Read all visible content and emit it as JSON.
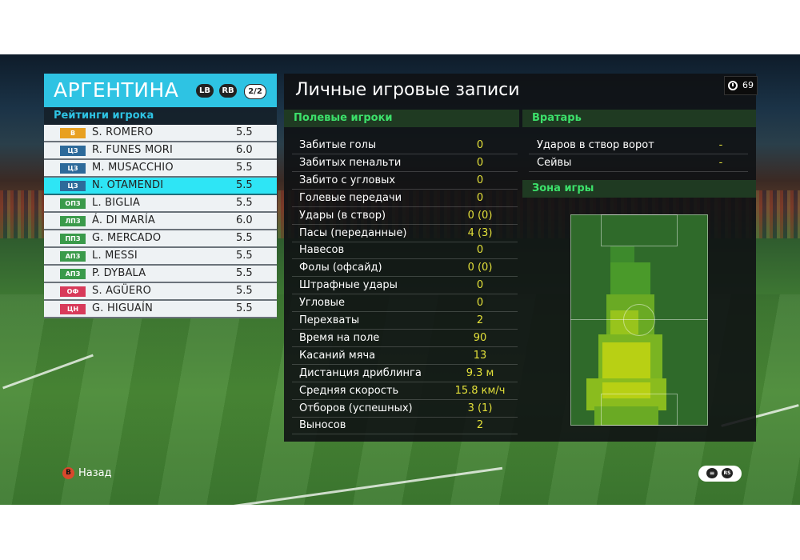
{
  "team": {
    "name": "АРГЕНТИНА",
    "lb": "LB",
    "rb": "RB",
    "page": "2/2"
  },
  "ratings_header": "Рейтинги игрока",
  "players": [
    {
      "pos": "В",
      "pos_color": "#e8a020",
      "name": "S. ROMERO",
      "rating": "5.5",
      "selected": false
    },
    {
      "pos": "ЦЗ",
      "pos_color": "#2d6a9a",
      "name": "R. FUNES MORI",
      "rating": "6.0",
      "selected": false
    },
    {
      "pos": "ЦЗ",
      "pos_color": "#2d6a9a",
      "name": "M. MUSACCHIO",
      "rating": "5.5",
      "selected": false
    },
    {
      "pos": "ЦЗ",
      "pos_color": "#2d6a9a",
      "name": "N. OTAMENDI",
      "rating": "5.5",
      "selected": true
    },
    {
      "pos": "ОПЗ",
      "pos_color": "#3a9a4a",
      "name": "L. BIGLIA",
      "rating": "5.5",
      "selected": false
    },
    {
      "pos": "ЛПЗ",
      "pos_color": "#3a9a4a",
      "name": "Á. DI MARÍA",
      "rating": "6.0",
      "selected": false
    },
    {
      "pos": "ППЗ",
      "pos_color": "#3a9a4a",
      "name": "G. MERCADO",
      "rating": "5.5",
      "selected": false
    },
    {
      "pos": "АПЗ",
      "pos_color": "#3a9a4a",
      "name": "L. MESSI",
      "rating": "5.5",
      "selected": false
    },
    {
      "pos": "АПЗ",
      "pos_color": "#3a9a4a",
      "name": "P. DYBALA",
      "rating": "5.5",
      "selected": false
    },
    {
      "pos": "ОФ",
      "pos_color": "#d83a5a",
      "name": "S. AGÜERO",
      "rating": "5.5",
      "selected": false
    },
    {
      "pos": "ЦН",
      "pos_color": "#d83a5a",
      "name": "G. HIGUAÍN",
      "rating": "5.5",
      "selected": false
    }
  ],
  "records": {
    "title": "Личные игровые записи",
    "timer": "69",
    "field_header": "Полевые игроки",
    "gk_header": "Вратарь",
    "zone_header": "Зона игры",
    "field_stats": [
      {
        "label": "Забитые голы",
        "value": "0"
      },
      {
        "label": "Забитых пенальти",
        "value": "0"
      },
      {
        "label": "Забито с угловых",
        "value": "0"
      },
      {
        "label": "Голевые передачи",
        "value": "0"
      },
      {
        "label": "Удары (в створ)",
        "value": "0 (0)"
      },
      {
        "label": "Пасы (переданные)",
        "value": "4 (3)"
      },
      {
        "label": "Навесов",
        "value": "0"
      },
      {
        "label": "Фолы (офсайд)",
        "value": "0 (0)"
      },
      {
        "label": "Штрафные удары",
        "value": "0"
      },
      {
        "label": "Угловые",
        "value": "0"
      },
      {
        "label": "Перехваты",
        "value": "2"
      },
      {
        "label": "Время на поле",
        "value": "90"
      },
      {
        "label": "Касаний мяча",
        "value": "13"
      },
      {
        "label": "Дистанция дриблинга",
        "value": "9.3 м"
      },
      {
        "label": "Средняя скорость",
        "value": "15.8 км/ч"
      },
      {
        "label": "Отборов (успешных)",
        "value": "3 (1)"
      },
      {
        "label": "Выносов",
        "value": "2"
      }
    ],
    "gk_stats": [
      {
        "label": "Ударов в створ ворот",
        "value": "-"
      },
      {
        "label": "Сейвы",
        "value": "-"
      }
    ]
  },
  "back": {
    "button": "B",
    "label": "Назад"
  },
  "colors": {
    "team_header": "#2ec3e3",
    "selected_row": "#2ee5f5",
    "value_yellow": "#e3e03a",
    "sub_header_text": "#3ce06a"
  }
}
